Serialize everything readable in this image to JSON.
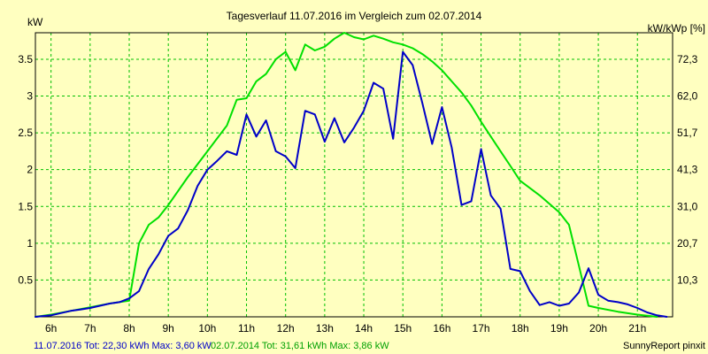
{
  "chart_data": {
    "type": "line",
    "title": "Tagesverlauf 11.07.2016 im Vergleich zum 02.07.2014",
    "ylabel_left": "kW",
    "ylabel_right": "kW/kWp [%]",
    "xlim": [
      5.6,
      21.9
    ],
    "ylim": [
      0,
      3.86
    ],
    "x_ticks": [
      6,
      7,
      8,
      9,
      10,
      11,
      12,
      13,
      14,
      15,
      16,
      17,
      18,
      19,
      20,
      21
    ],
    "x_tick_labels": [
      "6h",
      "7h",
      "8h",
      "9h",
      "10h",
      "11h",
      "12h",
      "13h",
      "14h",
      "15h",
      "16h",
      "17h",
      "18h",
      "19h",
      "20h",
      "21h"
    ],
    "y_ticks": [
      0.5,
      1,
      1.5,
      2,
      2.5,
      3,
      3.5
    ],
    "y_tick_labels": [
      "0.5",
      "1",
      "1.5",
      "2",
      "2.5",
      "3",
      "3.5"
    ],
    "y2_ticks": [
      0.5,
      1,
      1.5,
      2,
      2.5,
      3,
      3.5
    ],
    "y2_tick_labels": [
      "10,3",
      "20,7",
      "31,0",
      "41,3",
      "51,7",
      "62,0",
      "72,3"
    ],
    "grid": true,
    "series": [
      {
        "name": "11.07.2016 Tot: 22,30 kWh Max: 3,60 kW",
        "color": "#0000c8",
        "x": [
          5.6,
          6.0,
          6.25,
          6.5,
          6.75,
          7.0,
          7.25,
          7.5,
          7.75,
          8.0,
          8.25,
          8.5,
          8.75,
          9.0,
          9.25,
          9.5,
          9.75,
          10.0,
          10.25,
          10.5,
          10.75,
          11.0,
          11.25,
          11.5,
          11.75,
          12.0,
          12.25,
          12.5,
          12.75,
          13.0,
          13.25,
          13.5,
          13.75,
          14.0,
          14.25,
          14.5,
          14.75,
          15.0,
          15.25,
          15.5,
          15.75,
          16.0,
          16.25,
          16.5,
          16.75,
          17.0,
          17.25,
          17.5,
          17.75,
          18.0,
          18.25,
          18.5,
          18.75,
          19.0,
          19.25,
          19.5,
          19.75,
          20.0,
          20.25,
          20.5,
          20.75,
          21.0,
          21.25,
          21.5,
          21.75
        ],
        "y": [
          0.0,
          0.02,
          0.05,
          0.08,
          0.1,
          0.12,
          0.15,
          0.18,
          0.2,
          0.25,
          0.35,
          0.65,
          0.85,
          1.1,
          1.2,
          1.45,
          1.78,
          2.0,
          2.12,
          2.25,
          2.2,
          2.75,
          2.45,
          2.67,
          2.25,
          2.18,
          2.02,
          2.8,
          2.75,
          2.38,
          2.7,
          2.37,
          2.57,
          2.8,
          3.18,
          3.1,
          2.42,
          3.6,
          3.42,
          2.9,
          2.35,
          2.85,
          2.3,
          1.52,
          1.57,
          2.28,
          1.65,
          1.47,
          0.65,
          0.62,
          0.35,
          0.16,
          0.2,
          0.15,
          0.18,
          0.33,
          0.66,
          0.3,
          0.22,
          0.2,
          0.17,
          0.12,
          0.06,
          0.02,
          0.0
        ]
      },
      {
        "name": "02.07.2014 Tot: 31,61 kWh Max: 3,86 kW",
        "color": "#00e000",
        "x": [
          5.6,
          6.0,
          6.5,
          7.0,
          7.5,
          8.0,
          8.25,
          8.5,
          8.75,
          9.0,
          9.5,
          10.0,
          10.5,
          10.75,
          11.0,
          11.25,
          11.5,
          11.75,
          12.0,
          12.25,
          12.5,
          12.75,
          13.0,
          13.25,
          13.5,
          13.75,
          14.0,
          14.25,
          14.5,
          14.75,
          15.0,
          15.25,
          15.5,
          15.75,
          16.0,
          16.25,
          16.5,
          16.75,
          17.0,
          17.25,
          17.5,
          17.75,
          18.0,
          18.5,
          19.0,
          19.25,
          19.5,
          19.75,
          20.0,
          20.5,
          21.0,
          21.5
        ],
        "y": [
          0.0,
          0.03,
          0.08,
          0.13,
          0.18,
          0.22,
          1.0,
          1.25,
          1.35,
          1.52,
          1.9,
          2.25,
          2.6,
          2.95,
          2.97,
          3.2,
          3.3,
          3.5,
          3.6,
          3.35,
          3.7,
          3.62,
          3.67,
          3.78,
          3.86,
          3.8,
          3.77,
          3.82,
          3.78,
          3.73,
          3.7,
          3.65,
          3.57,
          3.47,
          3.35,
          3.2,
          3.05,
          2.87,
          2.65,
          2.45,
          2.25,
          2.05,
          1.85,
          1.65,
          1.42,
          1.25,
          0.7,
          0.15,
          0.12,
          0.07,
          0.03,
          0.0
        ]
      }
    ]
  },
  "footer": {
    "series1_label": "11.07.2016 Tot: 22,30 kWh Max: 3,60 kW",
    "series2_label": "02.07.2014 Tot: 31,61 kWh Max: 3,86 kW",
    "credit": "SunnyReport pinxit"
  },
  "colors": {
    "background": "#ffffc0",
    "grid": "#00c000",
    "series1": "#0000c8",
    "series2": "#00e000",
    "footer_series2": "#00a000"
  }
}
